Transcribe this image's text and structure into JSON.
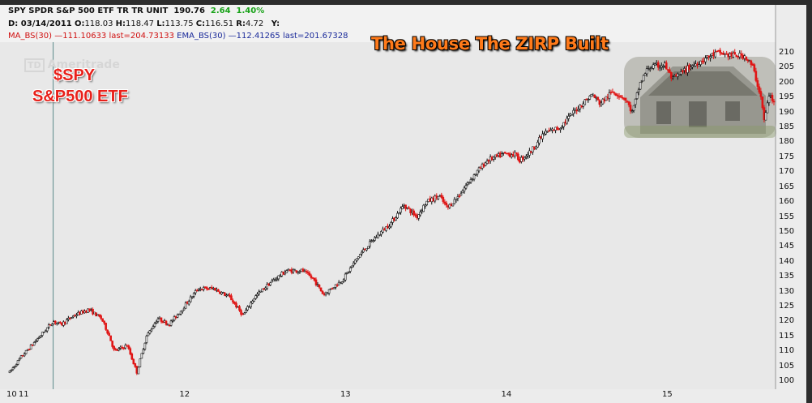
{
  "header": {
    "line1": {
      "name": "SPY SPDR S&P 500 ETF TR TR UNIT",
      "price": "190.76",
      "change": "2.64",
      "change_pct": "1.40%"
    },
    "line2": {
      "date": "D: 03/14/2011",
      "open_label": "O:",
      "open": "118.03",
      "high_label": "H:",
      "high": "118.47",
      "low_label": "L:",
      "low": "113.75",
      "close_label": "C:",
      "close": "116.51",
      "range_label": "R:",
      "range": "4.72",
      "y_label": "Y:"
    },
    "line3": {
      "ma": "MA_BS(30) —111.10633 last=204.73133",
      "ema": "EMA_BS(30) —112.41265 last=201.67328"
    }
  },
  "annotations": {
    "title": "The House The ZIRP Built",
    "symbol": "$SPY",
    "symbol_desc": "S&P500 ETF",
    "watermark": "Ameritrade"
  },
  "colors": {
    "up": "#111111",
    "down": "#e01515",
    "plot_bg": "#e8e8e8",
    "axis_bg": "#ececec",
    "cursor": "#5a8a8a"
  },
  "chart_data": {
    "type": "candlestick",
    "yticks": [
      100,
      105,
      110,
      115,
      120,
      125,
      130,
      135,
      140,
      145,
      150,
      155,
      160,
      165,
      170,
      175,
      180,
      185,
      190,
      195,
      200,
      205,
      210
    ],
    "ylim": [
      97,
      214
    ],
    "xtick_labels": [
      "10",
      "11",
      "12",
      "13",
      "14",
      "15"
    ],
    "xtick_years": [
      2010.95,
      2011.0,
      2012.0,
      2013.0,
      2014.0,
      2015.0
    ],
    "x_range": [
      2010.93,
      2015.68
    ],
    "cursor_year": 2011.2,
    "price_path": [
      [
        2010.93,
        103
      ],
      [
        2011.0,
        108
      ],
      [
        2011.1,
        114
      ],
      [
        2011.2,
        120
      ],
      [
        2011.25,
        119
      ],
      [
        2011.33,
        122
      ],
      [
        2011.42,
        124
      ],
      [
        2011.5,
        121
      ],
      [
        2011.55,
        115
      ],
      [
        2011.58,
        110
      ],
      [
        2011.66,
        112
      ],
      [
        2011.72,
        103
      ],
      [
        2011.78,
        115
      ],
      [
        2011.85,
        121
      ],
      [
        2011.92,
        119
      ],
      [
        2012.0,
        124
      ],
      [
        2012.1,
        131
      ],
      [
        2012.2,
        131
      ],
      [
        2012.3,
        128
      ],
      [
        2012.38,
        122
      ],
      [
        2012.45,
        128
      ],
      [
        2012.55,
        133
      ],
      [
        2012.65,
        137
      ],
      [
        2012.75,
        137
      ],
      [
        2012.82,
        134
      ],
      [
        2012.88,
        129
      ],
      [
        2013.0,
        134
      ],
      [
        2013.1,
        142
      ],
      [
        2013.2,
        148
      ],
      [
        2013.3,
        153
      ],
      [
        2013.38,
        159
      ],
      [
        2013.46,
        155
      ],
      [
        2013.52,
        160
      ],
      [
        2013.6,
        162
      ],
      [
        2013.65,
        158
      ],
      [
        2013.72,
        162
      ],
      [
        2013.8,
        168
      ],
      [
        2013.9,
        174
      ],
      [
        2014.0,
        176
      ],
      [
        2014.07,
        176
      ],
      [
        2014.1,
        174
      ],
      [
        2014.17,
        177
      ],
      [
        2014.25,
        183
      ],
      [
        2014.35,
        185
      ],
      [
        2014.45,
        191
      ],
      [
        2014.55,
        196
      ],
      [
        2014.6,
        193
      ],
      [
        2014.68,
        197
      ],
      [
        2014.75,
        195
      ],
      [
        2014.8,
        190
      ],
      [
        2014.85,
        200
      ],
      [
        2014.9,
        205
      ],
      [
        2015.0,
        206
      ],
      [
        2015.05,
        201
      ],
      [
        2015.15,
        205
      ],
      [
        2015.25,
        208
      ],
      [
        2015.33,
        210
      ],
      [
        2015.42,
        209
      ],
      [
        2015.5,
        209
      ],
      [
        2015.55,
        205
      ],
      [
        2015.6,
        195
      ],
      [
        2015.62,
        187
      ],
      [
        2015.65,
        196
      ],
      [
        2015.68,
        193
      ]
    ]
  }
}
